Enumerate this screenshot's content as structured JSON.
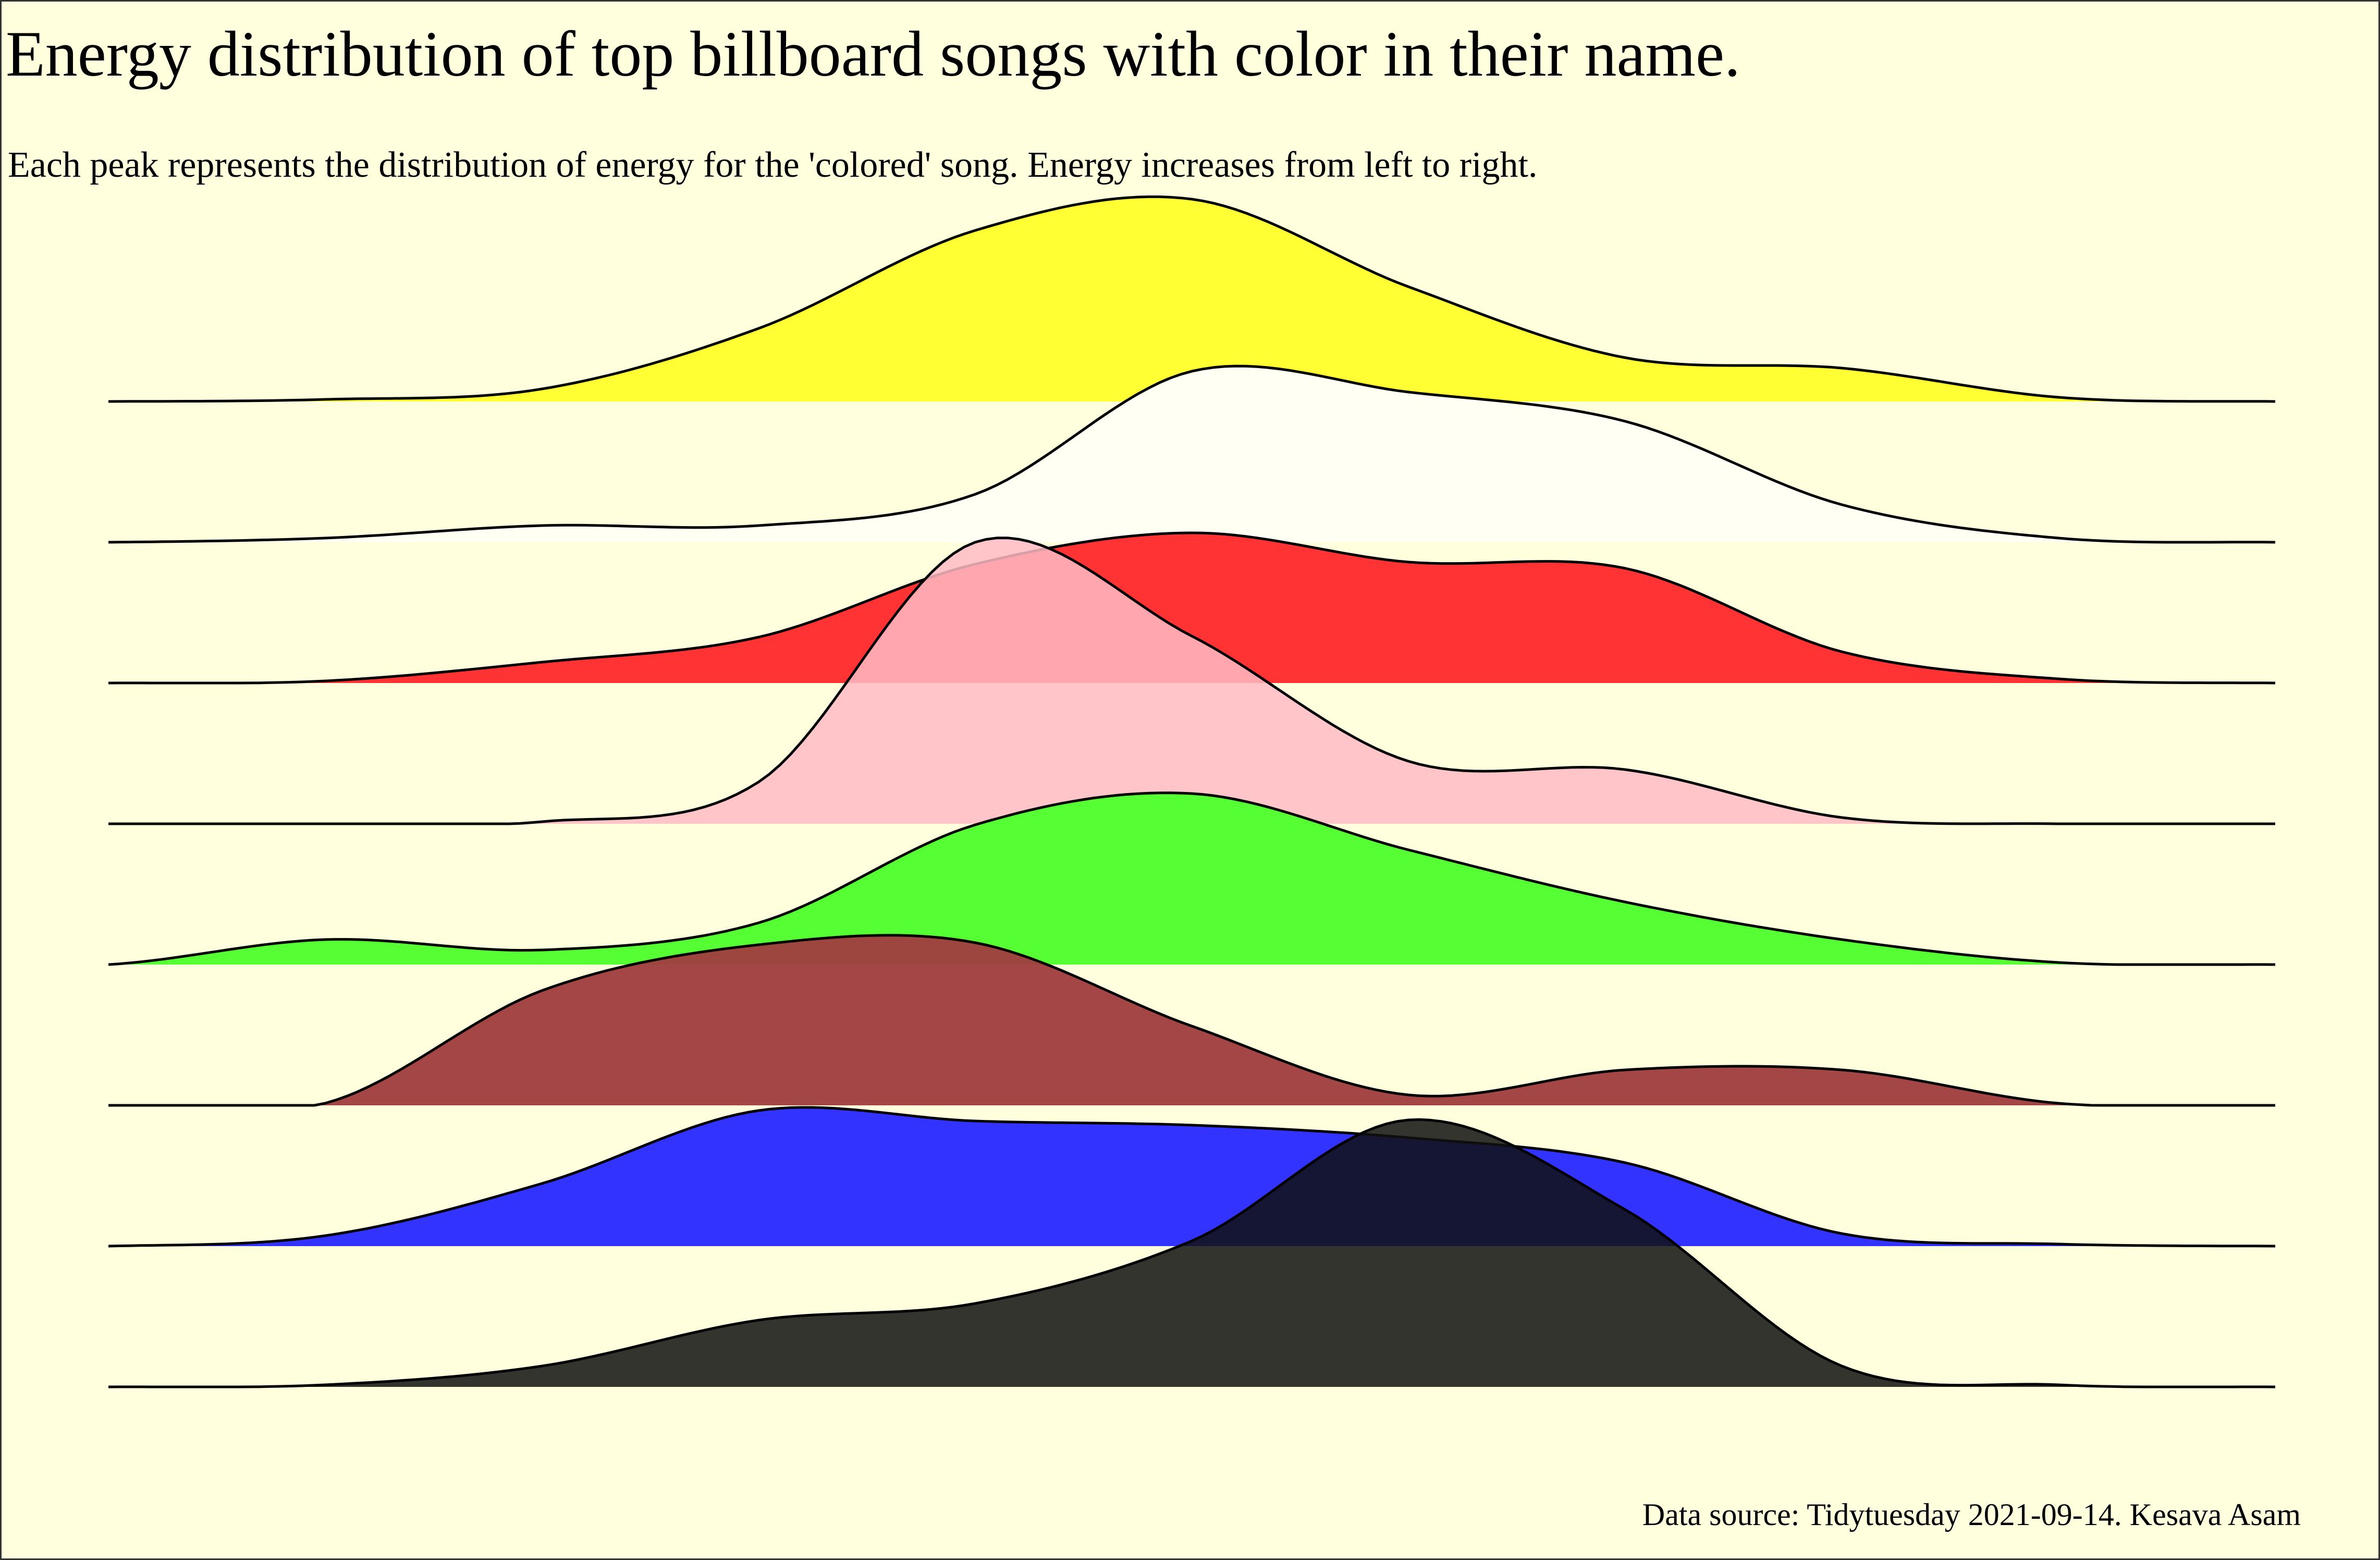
{
  "chart_data": {
    "type": "ridgeline",
    "title": "Energy distribution of top billboard songs with color in their name.",
    "subtitle": "Each peak represents the distribution of energy for the 'colored' song. Energy increases from left to right.",
    "caption": "Data source: Tidytuesday 2021-09-14. Kesava Asam",
    "background": "#FFFFDE",
    "x": [
      0,
      0.1,
      0.2,
      0.3,
      0.4,
      0.5,
      0.6,
      0.7,
      0.8,
      0.9,
      1.0
    ],
    "series": [
      {
        "color_name": "yellow",
        "fill": "#FFFF33",
        "opacity": 1,
        "density": [
          0,
          0.01,
          0.06,
          0.35,
          0.82,
          0.97,
          0.55,
          0.21,
          0.16,
          0.02,
          0
        ]
      },
      {
        "color_name": "white",
        "fill": "#FFFFF3",
        "opacity": 1,
        "density": [
          0,
          0.02,
          0.08,
          0.08,
          0.23,
          0.82,
          0.72,
          0.58,
          0.18,
          0.02,
          0
        ]
      },
      {
        "color_name": "red",
        "fill": "#FF3333",
        "opacity": 1,
        "density": [
          0,
          0.01,
          0.1,
          0.22,
          0.57,
          0.72,
          0.58,
          0.55,
          0.15,
          0.02,
          0
        ]
      },
      {
        "color_name": "pink",
        "fill": "#FFBBC4",
        "opacity": 0.85,
        "density": [
          0,
          0,
          0.01,
          0.2,
          1.35,
          0.9,
          0.3,
          0.26,
          0.03,
          0,
          0
        ]
      },
      {
        "color_name": "green",
        "fill": "#55FF33",
        "opacity": 1,
        "density": [
          0,
          0.12,
          0.07,
          0.2,
          0.67,
          0.82,
          0.55,
          0.3,
          0.12,
          0.01,
          0
        ]
      },
      {
        "color_name": "brown",
        "fill": "#A04040",
        "opacity": 0.97,
        "density": [
          0,
          0.01,
          0.55,
          0.77,
          0.78,
          0.38,
          0.05,
          0.17,
          0.17,
          0.01,
          0
        ]
      },
      {
        "color_name": "blue",
        "fill": "#3333FF",
        "opacity": 1,
        "density": [
          0,
          0.05,
          0.3,
          0.65,
          0.6,
          0.58,
          0.52,
          0.4,
          0.06,
          0.01,
          0
        ]
      },
      {
        "color_name": "black",
        "fill": "#111111",
        "opacity": 0.85,
        "density": [
          0,
          0.01,
          0.1,
          0.32,
          0.4,
          0.7,
          1.28,
          0.85,
          0.1,
          0.01,
          0
        ]
      }
    ]
  }
}
